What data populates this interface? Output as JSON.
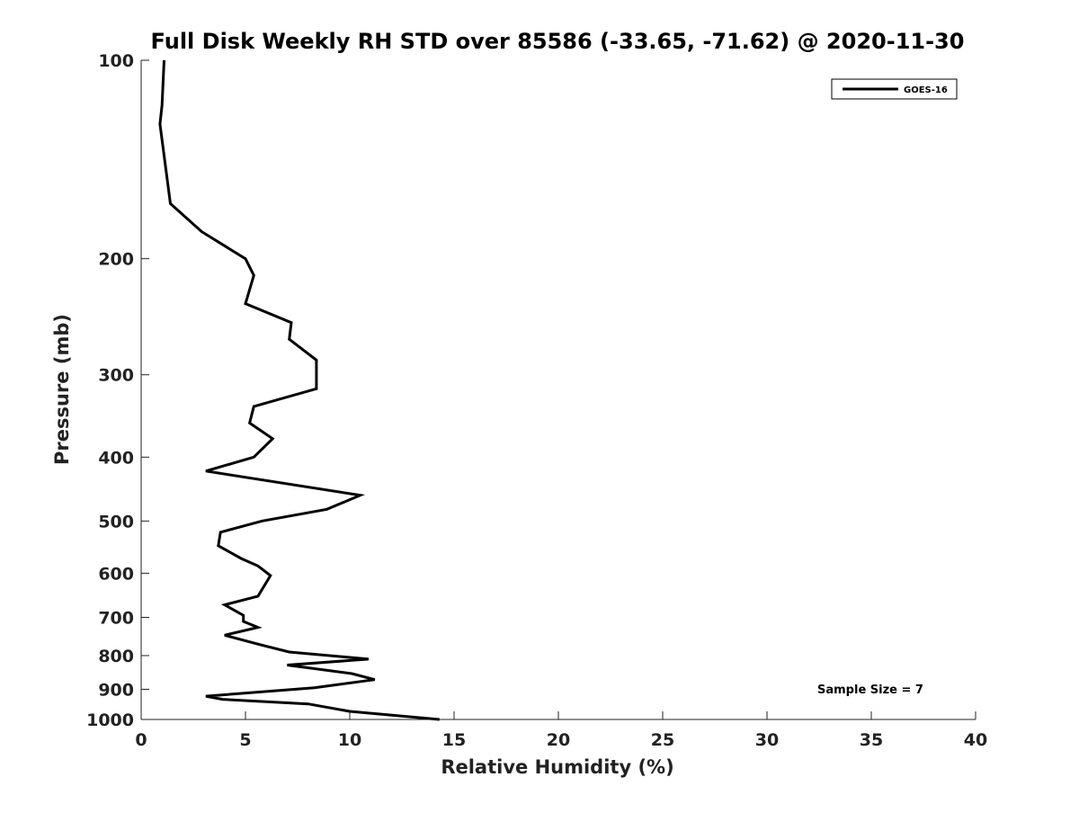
{
  "chart_data": {
    "type": "line",
    "title": "Full Disk Weekly RH STD over 85586 (-33.65, -71.62) @ 2020-11-30",
    "xlabel": "Relative Humidity (%)",
    "ylabel": "Pressure (mb)",
    "xlim": [
      0,
      40
    ],
    "ylim": [
      100,
      1000
    ],
    "y_scale": "log",
    "y_inverted": true,
    "grid": false,
    "x_ticks": [
      0,
      5,
      10,
      15,
      20,
      25,
      30,
      35,
      40
    ],
    "y_ticks": [
      100,
      200,
      300,
      400,
      500,
      600,
      700,
      800,
      900,
      1000
    ],
    "legend": {
      "placement": "top-right",
      "entries": [
        "GOES-16"
      ]
    },
    "annotation": "Sample Size = 7",
    "line_color": "#000000",
    "series": [
      {
        "name": "GOES-16",
        "x": [
          1.1,
          1.0,
          0.9,
          1.4,
          2.9,
          5.0,
          5.4,
          5.0,
          7.2,
          7.1,
          8.4,
          8.4,
          5.4,
          5.2,
          6.3,
          5.4,
          3.1,
          10.5,
          8.9,
          5.8,
          3.8,
          3.7,
          4.8,
          5.6,
          6.2,
          5.6,
          4.0,
          4.9,
          4.9,
          5.6,
          4.0,
          5.7,
          7.1,
          10.9,
          7.0,
          10.1,
          11.2,
          8.3,
          3.1,
          3.9,
          8.0,
          10.0,
          14.3
        ],
        "y": [
          100,
          117,
          125,
          165,
          182,
          200,
          212,
          234,
          250,
          265,
          285,
          315,
          335,
          355,
          375,
          400,
          420,
          457,
          480,
          500,
          520,
          545,
          570,
          585,
          605,
          650,
          670,
          695,
          710,
          725,
          745,
          770,
          790,
          810,
          827,
          852,
          870,
          895,
          922,
          932,
          947,
          972,
          1000
        ]
      }
    ]
  }
}
